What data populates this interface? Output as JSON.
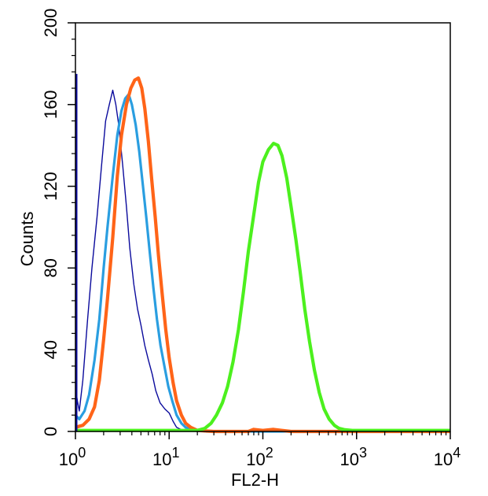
{
  "chart_data": {
    "type": "line",
    "title": "",
    "xlabel": "FL2-H",
    "ylabel": "Counts",
    "x_scale": "log",
    "xlim": [
      1,
      10000
    ],
    "ylim": [
      0,
      200
    ],
    "x_ticks": [
      {
        "value": 1,
        "base": "10",
        "exp": "0"
      },
      {
        "value": 10,
        "base": "10",
        "exp": "1"
      },
      {
        "value": 100,
        "base": "10",
        "exp": "2"
      },
      {
        "value": 1000,
        "base": "10",
        "exp": "3"
      },
      {
        "value": 10000,
        "base": "10",
        "exp": "4"
      }
    ],
    "y_ticks": [
      "0",
      "40",
      "80",
      "120",
      "160",
      "200"
    ],
    "grid": false,
    "legend": "none",
    "series": [
      {
        "color": "#0a0a9c",
        "line_width": "thin",
        "points": [
          [
            1.0,
            105
          ],
          [
            1.01,
            20
          ],
          [
            1.05,
            15
          ],
          [
            1.1,
            10
          ],
          [
            1.2,
            25
          ],
          [
            1.35,
            55
          ],
          [
            1.5,
            80
          ],
          [
            1.7,
            105
          ],
          [
            1.9,
            130
          ],
          [
            2.1,
            152
          ],
          [
            2.3,
            160
          ],
          [
            2.5,
            167
          ],
          [
            2.7,
            160
          ],
          [
            2.9,
            150
          ],
          [
            3.2,
            130
          ],
          [
            3.5,
            110
          ],
          [
            3.8,
            90
          ],
          [
            4.2,
            72
          ],
          [
            4.6,
            60
          ],
          [
            5.0,
            52
          ],
          [
            5.5,
            42
          ],
          [
            6.0,
            35
          ],
          [
            6.6,
            28
          ],
          [
            7.2,
            20
          ],
          [
            8.0,
            14
          ],
          [
            9.0,
            11
          ],
          [
            10.0,
            9
          ],
          [
            11.0,
            5
          ],
          [
            12.0,
            2
          ],
          [
            14.0,
            0.5
          ],
          [
            20.0,
            0
          ],
          [
            10000,
            0
          ]
        ]
      },
      {
        "color": "#2a9ee0",
        "line_width": "medium",
        "points": [
          [
            1.0,
            8
          ],
          [
            1.1,
            6
          ],
          [
            1.25,
            10
          ],
          [
            1.4,
            18
          ],
          [
            1.6,
            35
          ],
          [
            1.8,
            55
          ],
          [
            2.0,
            80
          ],
          [
            2.2,
            100
          ],
          [
            2.5,
            125
          ],
          [
            2.8,
            145
          ],
          [
            3.1,
            157
          ],
          [
            3.4,
            163
          ],
          [
            3.7,
            165
          ],
          [
            4.0,
            160
          ],
          [
            4.4,
            150
          ],
          [
            4.8,
            137
          ],
          [
            5.2,
            122
          ],
          [
            5.7,
            105
          ],
          [
            6.2,
            88
          ],
          [
            6.8,
            70
          ],
          [
            7.4,
            55
          ],
          [
            8.1,
            42
          ],
          [
            8.9,
            32
          ],
          [
            9.8,
            22
          ],
          [
            10.8,
            15
          ],
          [
            12.0,
            8
          ],
          [
            13.5,
            4
          ],
          [
            15.0,
            2
          ],
          [
            18.0,
            1
          ],
          [
            25.0,
            0
          ],
          [
            10000,
            0
          ]
        ]
      },
      {
        "color": "#ff6418",
        "line_width": "thick",
        "points": [
          [
            1.0,
            2
          ],
          [
            1.2,
            3
          ],
          [
            1.4,
            6
          ],
          [
            1.6,
            12
          ],
          [
            1.8,
            25
          ],
          [
            2.0,
            45
          ],
          [
            2.2,
            65
          ],
          [
            2.5,
            95
          ],
          [
            2.8,
            125
          ],
          [
            3.1,
            145
          ],
          [
            3.5,
            160
          ],
          [
            3.9,
            168
          ],
          [
            4.3,
            172
          ],
          [
            4.7,
            173
          ],
          [
            5.1,
            168
          ],
          [
            5.5,
            158
          ],
          [
            6.0,
            142
          ],
          [
            6.5,
            124
          ],
          [
            7.1,
            105
          ],
          [
            7.7,
            86
          ],
          [
            8.4,
            68
          ],
          [
            9.2,
            50
          ],
          [
            10.0,
            36
          ],
          [
            11.0,
            24
          ],
          [
            12.0,
            15
          ],
          [
            13.5,
            8
          ],
          [
            15.0,
            4
          ],
          [
            17.0,
            2
          ],
          [
            20.0,
            0.5
          ],
          [
            30.0,
            0
          ],
          [
            70.0,
            0
          ],
          [
            80.0,
            1
          ],
          [
            100.0,
            0.5
          ],
          [
            130.0,
            1
          ],
          [
            160.0,
            0.5
          ],
          [
            200.0,
            0
          ],
          [
            10000,
            0
          ]
        ]
      },
      {
        "color": "#4cf01e",
        "line_width": "thick",
        "points": [
          [
            1.0,
            0.5
          ],
          [
            20.0,
            0.5
          ],
          [
            24.0,
            1.5
          ],
          [
            28.0,
            4
          ],
          [
            32.0,
            8
          ],
          [
            37.0,
            14
          ],
          [
            42.0,
            22
          ],
          [
            48.0,
            34
          ],
          [
            55.0,
            50
          ],
          [
            62.0,
            68
          ],
          [
            70.0,
            88
          ],
          [
            80.0,
            106
          ],
          [
            90.0,
            122
          ],
          [
            100.0,
            132
          ],
          [
            115.0,
            138
          ],
          [
            130.0,
            141
          ],
          [
            145.0,
            140
          ],
          [
            160.0,
            135
          ],
          [
            180.0,
            124
          ],
          [
            200.0,
            110
          ],
          [
            225.0,
            94
          ],
          [
            250.0,
            78
          ],
          [
            280.0,
            60
          ],
          [
            315.0,
            44
          ],
          [
            355.0,
            30
          ],
          [
            400.0,
            19
          ],
          [
            450.0,
            11
          ],
          [
            510.0,
            6
          ],
          [
            580.0,
            3
          ],
          [
            650.0,
            1.5
          ],
          [
            750.0,
            0.8
          ],
          [
            900.0,
            0.5
          ],
          [
            10000,
            0.5
          ]
        ]
      }
    ]
  }
}
